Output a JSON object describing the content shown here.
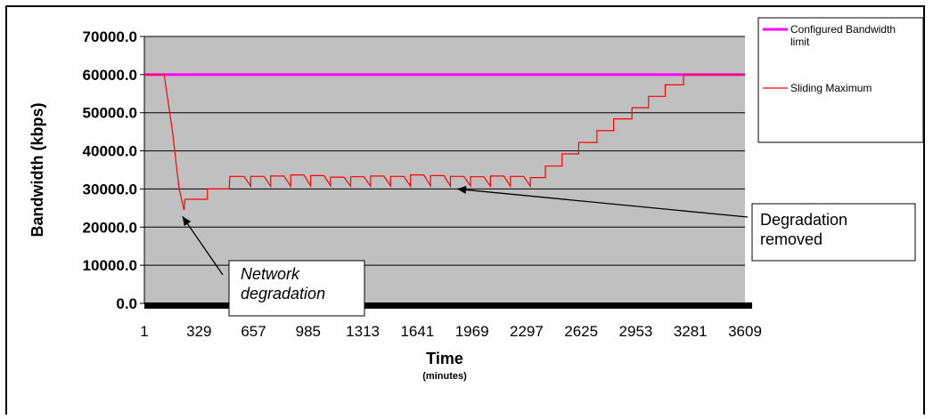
{
  "chart_data": {
    "type": "line",
    "xlabel": "Time",
    "xlabel_sub": "(minutes)",
    "ylabel": "Bandwidth (kbps)",
    "ylim": [
      0,
      70000
    ],
    "xlim": [
      1,
      3609
    ],
    "y_ticks": [
      "0.0",
      "10000.0",
      "20000.0",
      "30000.0",
      "40000.0",
      "50000.0",
      "60000.0",
      "70000.0"
    ],
    "x_ticks": [
      "1",
      "329",
      "657",
      "985",
      "1313",
      "1641",
      "1969",
      "2297",
      "2625",
      "2953",
      "3281",
      "3609"
    ],
    "grid": "horizontal",
    "plot_background": "#c0c0c0",
    "legend_position": "right",
    "series": [
      {
        "name": "Configured Bandwidth limit",
        "color": "#ff00ff",
        "points": [
          [
            1,
            60000
          ],
          [
            3609,
            60000
          ]
        ]
      },
      {
        "name": "Sliding Maximum",
        "color": "#ff0000",
        "points": [
          [
            1,
            60000
          ],
          [
            120,
            60000
          ],
          [
            170,
            45000
          ],
          [
            210,
            30000
          ],
          [
            240,
            24500
          ],
          [
            245,
            27300
          ],
          [
            380,
            27300
          ],
          [
            380,
            30000
          ],
          [
            510,
            30000
          ],
          [
            515,
            33300
          ],
          [
            600,
            33300
          ],
          [
            640,
            30700
          ],
          [
            640,
            33300
          ],
          [
            720,
            33300
          ],
          [
            760,
            30700
          ],
          [
            760,
            33400
          ],
          [
            840,
            33400
          ],
          [
            880,
            30700
          ],
          [
            880,
            33700
          ],
          [
            960,
            33700
          ],
          [
            1000,
            30800
          ],
          [
            1000,
            33500
          ],
          [
            1080,
            33500
          ],
          [
            1120,
            30800
          ],
          [
            1120,
            33100
          ],
          [
            1200,
            33100
          ],
          [
            1240,
            30700
          ],
          [
            1240,
            33200
          ],
          [
            1320,
            33200
          ],
          [
            1360,
            30700
          ],
          [
            1360,
            33400
          ],
          [
            1440,
            33400
          ],
          [
            1480,
            30800
          ],
          [
            1480,
            33300
          ],
          [
            1560,
            33300
          ],
          [
            1600,
            30700
          ],
          [
            1600,
            33700
          ],
          [
            1680,
            33700
          ],
          [
            1720,
            30800
          ],
          [
            1720,
            33500
          ],
          [
            1800,
            33500
          ],
          [
            1840,
            30700
          ],
          [
            1840,
            33300
          ],
          [
            1920,
            33300
          ],
          [
            1960,
            30800
          ],
          [
            1960,
            33200
          ],
          [
            2040,
            33200
          ],
          [
            2080,
            30700
          ],
          [
            2080,
            33400
          ],
          [
            2160,
            33400
          ],
          [
            2200,
            30700
          ],
          [
            2200,
            33300
          ],
          [
            2280,
            33300
          ],
          [
            2320,
            30700
          ],
          [
            2320,
            33000
          ],
          [
            2410,
            33000
          ],
          [
            2410,
            36000
          ],
          [
            2510,
            36000
          ],
          [
            2510,
            39200
          ],
          [
            2610,
            39200
          ],
          [
            2610,
            42200
          ],
          [
            2720,
            42200
          ],
          [
            2720,
            45300
          ],
          [
            2820,
            45300
          ],
          [
            2820,
            48400
          ],
          [
            2930,
            48400
          ],
          [
            2930,
            51300
          ],
          [
            3030,
            51300
          ],
          [
            3030,
            54300
          ],
          [
            3130,
            54300
          ],
          [
            3130,
            57300
          ],
          [
            3240,
            57300
          ],
          [
            3240,
            60000
          ],
          [
            3609,
            60000
          ]
        ]
      }
    ],
    "annotations": [
      {
        "text": [
          "Network",
          "degradation"
        ],
        "italic": true,
        "points_to": [
          230,
          20000
        ]
      },
      {
        "text": [
          "Degradation",
          "removed"
        ],
        "italic": false,
        "points_to": [
          1880,
          30000
        ]
      }
    ]
  }
}
